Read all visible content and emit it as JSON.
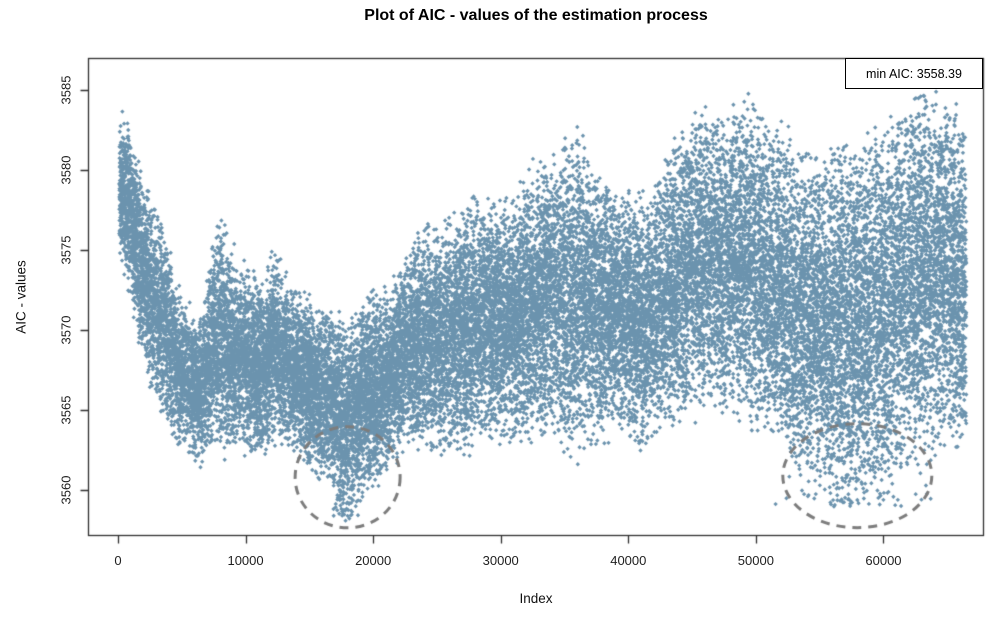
{
  "chart_data": {
    "type": "scatter",
    "title": "Plot of AIC - values of the estimation process",
    "xlabel": "Index",
    "ylabel": "AIC - values",
    "xlim": [
      -2350,
      67880
    ],
    "ylim": [
      3557.13,
      3587.0
    ],
    "x_ticks": [
      0,
      10000,
      20000,
      30000,
      40000,
      50000,
      60000
    ],
    "y_ticks": [
      3560,
      3565,
      3570,
      3575,
      3580,
      3585
    ],
    "x_data_range": [
      100,
      66500
    ],
    "grid": false,
    "legend": {
      "label": "min AIC: 3558.39",
      "position": "topright"
    },
    "min_aic": 3558.39,
    "point_color": "#6b93ae",
    "marker": "diamond",
    "approx_rendered_points": 30000,
    "axis_color": "#2e2e2e",
    "text_color": "#1f1f1f",
    "background": "#ffffff",
    "envelope": {
      "x": [
        100,
        800,
        1500,
        2500,
        3500,
        4500,
        5500,
        6500,
        7800,
        9000,
        10000,
        11000,
        12200,
        13500,
        15000,
        16500,
        18000,
        19500,
        21000,
        22500,
        24000,
        26000,
        28000,
        30000,
        32000,
        34000,
        35500,
        37000,
        39000,
        41500,
        43500,
        45500,
        47500,
        49500,
        51500,
        53500,
        55500,
        57500,
        59500,
        61500,
        63000,
        64500,
        66500
      ],
      "top": [
        3583.4,
        3583.0,
        3580.5,
        3578.0,
        3576.0,
        3573.0,
        3571.5,
        3570.0,
        3577.6,
        3575.0,
        3573.5,
        3573.0,
        3575.0,
        3572.5,
        3572.0,
        3571.0,
        3570.7,
        3571.5,
        3572.5,
        3574.5,
        3576.0,
        3577.0,
        3578.4,
        3577.5,
        3579.5,
        3581.0,
        3582.8,
        3580.5,
        3579.0,
        3578.5,
        3581.5,
        3583.5,
        3584.0,
        3584.2,
        3583.0,
        3581.5,
        3581.0,
        3581.5,
        3582.5,
        3584.5,
        3585.2,
        3584.5,
        3583.0
      ],
      "bottom": [
        3575.0,
        3572.5,
        3570.5,
        3566.5,
        3564.5,
        3563.5,
        3562.3,
        3561.5,
        3563.0,
        3562.0,
        3562.5,
        3562.0,
        3562.5,
        3562.5,
        3561.5,
        3560.0,
        3558.4,
        3559.8,
        3561.0,
        3562.5,
        3563.0,
        3562.0,
        3563.0,
        3563.5,
        3563.0,
        3563.5,
        3561.5,
        3563.0,
        3563.5,
        3562.8,
        3564.0,
        3564.5,
        3564.5,
        3564.0,
        3563.0,
        3561.0,
        3559.5,
        3559.0,
        3559.5,
        3560.5,
        3562.0,
        3562.5,
        3562.5
      ]
    },
    "low_clusters": [
      {
        "x_center": 18000,
        "x_spread": 1400,
        "y_min": 3558.39,
        "y_max": 3559.7,
        "count": 35
      },
      {
        "x_center": 57800,
        "x_spread": 6800,
        "y_min": 3559.0,
        "y_max": 3561.2,
        "count": 55
      }
    ],
    "annotations": [
      {
        "type": "ellipse",
        "cx": 18000,
        "cy": 3560.8,
        "rx": 4115,
        "ry": 3.16,
        "color": "#7d7d7d",
        "line_width": 3,
        "dash": [
          9,
          7
        ]
      },
      {
        "type": "ellipse",
        "cx": 57950,
        "cy": 3560.9,
        "rx": 5840,
        "ry": 3.25,
        "color": "#7d7d7d",
        "line_width": 3,
        "dash": [
          9,
          7
        ]
      }
    ]
  }
}
